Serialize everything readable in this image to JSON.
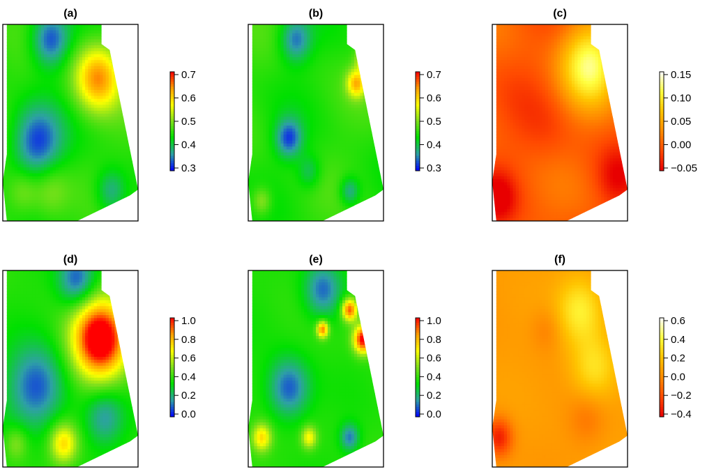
{
  "figure": {
    "colormaps": {
      "spectral": [
        "#0000ff",
        "#2ea0a6",
        "#00e000",
        "#7ee01b",
        "#ffff00",
        "#ff9f00",
        "#ff0000"
      ],
      "heat": [
        "#e80000",
        "#ff4a00",
        "#ff8c00",
        "#ffc400",
        "#ffff40",
        "#ffffff"
      ]
    }
  },
  "chart_data": [
    {
      "type": "heatmap",
      "title": "(a)",
      "colormap": "spectral",
      "value_range": [
        0.25,
        0.72
      ],
      "colorbar_ticks": [
        "0.7",
        "0.6",
        "0.5",
        "0.4",
        "0.3"
      ],
      "colorbar_tick_values": [
        0.7,
        0.6,
        0.5,
        0.4,
        0.3
      ],
      "base": 0.43,
      "features": [
        [
          0.35,
          0.08,
          0.1,
          -0.15
        ],
        [
          0.7,
          0.27,
          0.12,
          0.22
        ],
        [
          0.25,
          0.6,
          0.13,
          -0.15
        ],
        [
          0.35,
          0.85,
          0.1,
          0.07
        ],
        [
          0.8,
          0.85,
          0.08,
          -0.1
        ],
        [
          0.15,
          0.85,
          0.08,
          0.06
        ]
      ]
    },
    {
      "type": "heatmap",
      "title": "(b)",
      "colormap": "spectral",
      "value_range": [
        0.25,
        0.72
      ],
      "colorbar_ticks": [
        "0.7",
        "0.6",
        "0.5",
        "0.4",
        "0.3"
      ],
      "colorbar_tick_values": [
        0.7,
        0.6,
        0.5,
        0.4,
        0.3
      ],
      "base": 0.43,
      "features": [
        [
          0.35,
          0.08,
          0.08,
          -0.12
        ],
        [
          0.8,
          0.3,
          0.05,
          0.18
        ],
        [
          0.85,
          0.18,
          0.04,
          0.12
        ],
        [
          0.3,
          0.58,
          0.07,
          -0.14
        ],
        [
          0.45,
          0.75,
          0.06,
          -0.07
        ],
        [
          0.75,
          0.85,
          0.05,
          -0.1
        ],
        [
          0.1,
          0.9,
          0.05,
          0.08
        ]
      ]
    },
    {
      "type": "heatmap",
      "title": "(c)",
      "colormap": "heat",
      "value_range": [
        -0.08,
        0.19
      ],
      "colorbar_ticks": [
        "0.15",
        "0.10",
        "0.05",
        "0.00",
        "−0.05"
      ],
      "colorbar_tick_values": [
        0.15,
        0.1,
        0.05,
        0.0,
        -0.05
      ],
      "base": -0.01,
      "features": [
        [
          0.72,
          0.2,
          0.15,
          0.15
        ],
        [
          0.05,
          0.88,
          0.09,
          -0.07
        ],
        [
          0.92,
          0.78,
          0.1,
          -0.05
        ],
        [
          0.4,
          0.55,
          0.15,
          -0.02
        ]
      ]
    },
    {
      "type": "heatmap",
      "title": "(d)",
      "colormap": "spectral",
      "value_range": [
        0.0,
        1.0
      ],
      "colorbar_ticks": [
        "1.0",
        "0.8",
        "0.6",
        "0.4",
        "0.2",
        "0.0"
      ],
      "colorbar_tick_values": [
        1.0,
        0.8,
        0.6,
        0.4,
        0.2,
        0.0
      ],
      "base": 0.38,
      "features": [
        [
          0.55,
          0.05,
          0.1,
          -0.3
        ],
        [
          0.72,
          0.35,
          0.14,
          0.75
        ],
        [
          0.25,
          0.6,
          0.15,
          -0.3
        ],
        [
          0.75,
          0.75,
          0.1,
          -0.2
        ],
        [
          0.45,
          0.88,
          0.07,
          0.35
        ],
        [
          0.1,
          0.88,
          0.06,
          0.15
        ]
      ]
    },
    {
      "type": "heatmap",
      "title": "(e)",
      "colormap": "spectral",
      "value_range": [
        0.0,
        1.0
      ],
      "colorbar_ticks": [
        "1.0",
        "0.8",
        "0.6",
        "0.4",
        "0.2",
        "0.0"
      ],
      "colorbar_tick_values": [
        1.0,
        0.8,
        0.6,
        0.4,
        0.2,
        0.0
      ],
      "base": 0.38,
      "features": [
        [
          0.55,
          0.1,
          0.1,
          -0.28
        ],
        [
          0.85,
          0.35,
          0.05,
          0.65
        ],
        [
          0.75,
          0.2,
          0.04,
          0.55
        ],
        [
          0.55,
          0.3,
          0.03,
          0.5
        ],
        [
          0.3,
          0.6,
          0.11,
          -0.3
        ],
        [
          0.1,
          0.85,
          0.05,
          0.35
        ],
        [
          0.45,
          0.85,
          0.04,
          0.3
        ],
        [
          0.75,
          0.85,
          0.05,
          -0.25
        ]
      ]
    },
    {
      "type": "heatmap",
      "title": "(f)",
      "colormap": "heat",
      "value_range": [
        -0.5,
        0.7
      ],
      "colorbar_ticks": [
        "0.6",
        "0.4",
        "0.2",
        "0.0",
        "−0.2",
        "−0.4"
      ],
      "colorbar_tick_values": [
        0.6,
        0.4,
        0.2,
        0.0,
        -0.2,
        -0.4
      ],
      "base": 0.05,
      "features": [
        [
          0.65,
          0.2,
          0.12,
          0.35
        ],
        [
          0.75,
          0.5,
          0.12,
          0.3
        ],
        [
          0.05,
          0.85,
          0.07,
          -0.45
        ],
        [
          0.7,
          0.75,
          0.1,
          -0.15
        ],
        [
          0.4,
          0.3,
          0.08,
          -0.12
        ]
      ]
    }
  ]
}
